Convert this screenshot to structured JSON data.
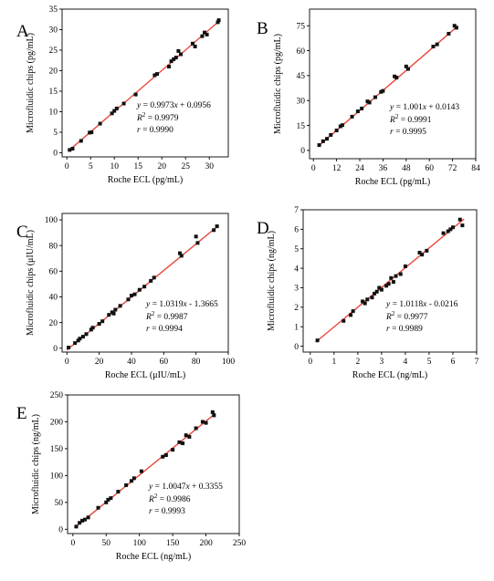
{
  "colors": {
    "fit_line": "#e8473a",
    "points": "#111111",
    "axes": "#000000"
  },
  "chart_data": [
    {
      "panel": "A",
      "type": "scatter",
      "xlabel": "Roche ECL (pg/mL)",
      "ylabel": "Microfluidic chips (pg/mL)",
      "xlim": [
        -1,
        34
      ],
      "ylim": [
        -1,
        35
      ],
      "xticks": [
        0,
        5,
        10,
        15,
        20,
        25,
        30
      ],
      "yticks": [
        0,
        5,
        10,
        15,
        20,
        25,
        30,
        35
      ],
      "fit": {
        "slope": 0.9973,
        "intercept": 0.0956
      },
      "annotation": {
        "equation": "y = 0.9973x + 0.0956",
        "r2": "R2 = 0.9979",
        "r": "r = 0.9990"
      },
      "points": [
        [
          0.6,
          0.7
        ],
        [
          1.2,
          1.0
        ],
        [
          3.0,
          2.9
        ],
        [
          4.8,
          4.9
        ],
        [
          5.2,
          5.0
        ],
        [
          7.0,
          7.1
        ],
        [
          9.5,
          9.6
        ],
        [
          10.0,
          10.2
        ],
        [
          10.5,
          10.8
        ],
        [
          12.0,
          12.0
        ],
        [
          14.5,
          14.2
        ],
        [
          18.5,
          18.9
        ],
        [
          19.0,
          19.2
        ],
        [
          21.5,
          21.0
        ],
        [
          22.0,
          22.3
        ],
        [
          22.5,
          22.8
        ],
        [
          23.0,
          23.2
        ],
        [
          23.5,
          24.8
        ],
        [
          24.0,
          24.0
        ],
        [
          26.5,
          26.6
        ],
        [
          27.0,
          25.9
        ],
        [
          28.5,
          28.4
        ],
        [
          29.0,
          29.3
        ],
        [
          29.5,
          28.8
        ],
        [
          31.8,
          31.8
        ],
        [
          32.0,
          32.3
        ]
      ]
    },
    {
      "panel": "B",
      "type": "scatter",
      "xlabel": "Roche ECL (pg/mL)",
      "ylabel": "Microfluidic chips (pg/mL)",
      "xlim": [
        -2,
        84
      ],
      "ylim": [
        -5,
        85
      ],
      "xticks": [
        0,
        12,
        24,
        36,
        48,
        60,
        72,
        84
      ],
      "yticks": [
        0,
        15,
        30,
        45,
        60,
        75
      ],
      "fit": {
        "slope": 1.001,
        "intercept": 0.0143
      },
      "annotation": {
        "equation": "y = 1.001x + 0.0143",
        "r2": "R2 = 0.9991",
        "r": "r = 0.9995"
      },
      "points": [
        [
          3,
          3.2
        ],
        [
          5,
          5.5
        ],
        [
          7,
          7.0
        ],
        [
          9,
          9.3
        ],
        [
          12,
          12.0
        ],
        [
          14,
          14.5
        ],
        [
          15,
          15.2
        ],
        [
          20,
          20.3
        ],
        [
          23,
          23.5
        ],
        [
          25,
          25.2
        ],
        [
          28,
          29.5
        ],
        [
          29,
          28.8
        ],
        [
          32,
          32.0
        ],
        [
          35,
          35.2
        ],
        [
          36,
          35.8
        ],
        [
          42,
          44.5
        ],
        [
          43,
          43.8
        ],
        [
          48,
          50.5
        ],
        [
          49,
          49.0
        ],
        [
          62,
          62.5
        ],
        [
          64,
          63.8
        ],
        [
          70,
          70.2
        ],
        [
          73,
          75.0
        ],
        [
          74,
          73.8
        ]
      ]
    },
    {
      "panel": "C",
      "type": "scatter",
      "xlabel": "Roche ECL (μIU/mL)",
      "ylabel": "Microfluidic chips (μIU/mL)",
      "xlim": [
        -3,
        100
      ],
      "ylim": [
        -3,
        105
      ],
      "xticks": [
        0,
        20,
        40,
        60,
        80,
        100
      ],
      "yticks": [
        0,
        20,
        40,
        60,
        80,
        100
      ],
      "fit": {
        "slope": 1.0319,
        "intercept": -1.3665
      },
      "annotation": {
        "equation": "y = 1.0319x - 1.3665",
        "r2": "R2 = 0.9987",
        "r": "r = 0.9994"
      },
      "points": [
        [
          1,
          0.5
        ],
        [
          5,
          4.0
        ],
        [
          7,
          6.0
        ],
        [
          8,
          7.5
        ],
        [
          10,
          9.0
        ],
        [
          12,
          11.0
        ],
        [
          15,
          14.5
        ],
        [
          16,
          16.0
        ],
        [
          20,
          19.0
        ],
        [
          22,
          21.0
        ],
        [
          26,
          26.0
        ],
        [
          28,
          28.0
        ],
        [
          29,
          27.0
        ],
        [
          30,
          30.0
        ],
        [
          33,
          33.0
        ],
        [
          38,
          38.0
        ],
        [
          40,
          41.0
        ],
        [
          42,
          42.0
        ],
        [
          45,
          45.5
        ],
        [
          48,
          48.0
        ],
        [
          52,
          52.5
        ],
        [
          54,
          55.0
        ],
        [
          70,
          74.0
        ],
        [
          71,
          72.0
        ],
        [
          80,
          87.0
        ],
        [
          81,
          82.0
        ],
        [
          91,
          92.0
        ],
        [
          93,
          95.0
        ]
      ]
    },
    {
      "panel": "D",
      "type": "scatter",
      "xlabel": "Roche ECL (ng/mL)",
      "ylabel": "Microfluidic chips (ng/mL)",
      "xlim": [
        -0.3,
        7
      ],
      "ylim": [
        -0.3,
        7
      ],
      "xticks": [
        0,
        1,
        2,
        3,
        4,
        5,
        6,
        7
      ],
      "yticks": [
        0,
        1,
        2,
        3,
        4,
        5,
        6,
        7
      ],
      "fit": {
        "slope": 1.0118,
        "intercept": -0.0216
      },
      "annotation": {
        "equation": "y = 1.0118x - 0.0216",
        "r2": "R2 = 0.9977",
        "r": "r = 0.9989"
      },
      "points": [
        [
          0.3,
          0.3
        ],
        [
          1.4,
          1.3
        ],
        [
          1.7,
          1.6
        ],
        [
          1.8,
          1.8
        ],
        [
          2.2,
          2.3
        ],
        [
          2.3,
          2.2
        ],
        [
          2.4,
          2.4
        ],
        [
          2.6,
          2.5
        ],
        [
          2.7,
          2.7
        ],
        [
          2.8,
          2.8
        ],
        [
          2.9,
          3.0
        ],
        [
          3.0,
          2.9
        ],
        [
          3.2,
          3.1
        ],
        [
          3.3,
          3.2
        ],
        [
          3.4,
          3.5
        ],
        [
          3.5,
          3.3
        ],
        [
          3.6,
          3.6
        ],
        [
          3.8,
          3.7
        ],
        [
          4.0,
          4.1
        ],
        [
          4.6,
          4.8
        ],
        [
          4.7,
          4.7
        ],
        [
          4.9,
          4.9
        ],
        [
          5.6,
          5.8
        ],
        [
          5.8,
          5.9
        ],
        [
          5.9,
          6.0
        ],
        [
          6.0,
          6.1
        ],
        [
          6.3,
          6.5
        ],
        [
          6.4,
          6.2
        ]
      ]
    },
    {
      "panel": "E",
      "type": "scatter",
      "xlabel": "Roche ECL (ng/mL)",
      "ylabel": "Microfluidic chips (ng/mL)",
      "xlim": [
        -8,
        250
      ],
      "ylim": [
        -8,
        250
      ],
      "xticks": [
        0,
        50,
        100,
        150,
        200,
        250
      ],
      "yticks": [
        0,
        50,
        100,
        150,
        200,
        250
      ],
      "fit": {
        "slope": 1.0047,
        "intercept": 0.3355
      },
      "annotation": {
        "equation": "y = 1.0047x + 0.3355",
        "r2": "R2 = 0.9986",
        "r": "r = 0.9993"
      },
      "points": [
        [
          5,
          5
        ],
        [
          10,
          12
        ],
        [
          14,
          16
        ],
        [
          18,
          18
        ],
        [
          23,
          22
        ],
        [
          38,
          40
        ],
        [
          50,
          50
        ],
        [
          53,
          55
        ],
        [
          57,
          58
        ],
        [
          68,
          70
        ],
        [
          80,
          82
        ],
        [
          88,
          90
        ],
        [
          92,
          95
        ],
        [
          103,
          108
        ],
        [
          135,
          135
        ],
        [
          140,
          138
        ],
        [
          150,
          148
        ],
        [
          160,
          162
        ],
        [
          165,
          160
        ],
        [
          170,
          175
        ],
        [
          175,
          172
        ],
        [
          185,
          188
        ],
        [
          195,
          200
        ],
        [
          200,
          198
        ],
        [
          210,
          218
        ],
        [
          212,
          212
        ]
      ]
    }
  ]
}
